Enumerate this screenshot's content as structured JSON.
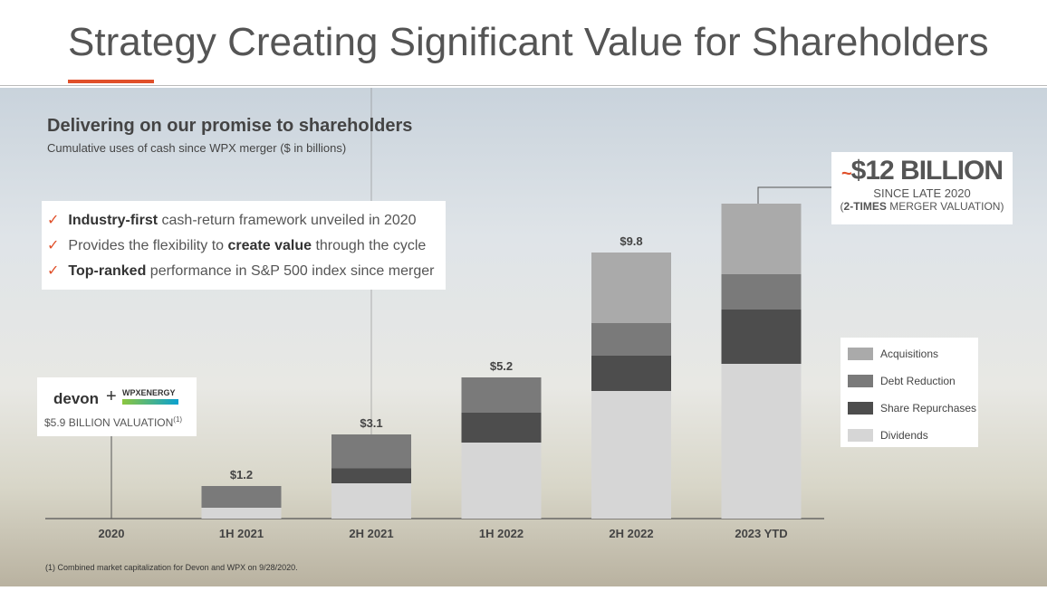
{
  "title": "Strategy Creating Significant Value for Shareholders",
  "chart_data": {
    "type": "stacked_bar",
    "title": "Delivering on our promise to shareholders",
    "subtitle": "Cumulative uses of cash since WPX merger ($ in billions)",
    "categories": [
      "2020",
      "1H 2021",
      "2H 2021",
      "1H 2022",
      "2H 2022",
      "2023 YTD"
    ],
    "series": [
      {
        "name": "Acquisitions",
        "color": "#aaaaaa",
        "values": [
          null,
          null,
          null,
          null,
          2.6,
          2.6
        ]
      },
      {
        "name": "Debt Reduction",
        "color": "#7a7a7a",
        "values": [
          null,
          0.8,
          1.25,
          1.3,
          1.2,
          1.3
        ]
      },
      {
        "name": "Share Repurchases",
        "color": "#4d4d4d",
        "values": [
          null,
          null,
          0.55,
          1.1,
          1.3,
          2.0
        ]
      },
      {
        "name": "Dividends",
        "color": "#d6d6d6",
        "values": [
          null,
          0.4,
          1.3,
          2.8,
          4.7,
          5.7
        ]
      }
    ],
    "totals": [
      null,
      1.2,
      3.1,
      5.2,
      9.8,
      null
    ],
    "value_labels": [
      null,
      "$1.2",
      "$3.1",
      "$5.2",
      "$9.8",
      null
    ],
    "legend": "right",
    "annotations": {
      "headline_prefix": "~",
      "headline": "$12 BILLION",
      "since": "SINCE LATE 2020",
      "note_open": "(",
      "note_bold": "2-TIMES",
      "note_rest": " MERGER VALUATION)"
    }
  },
  "checklist": [
    [
      {
        "text": "Industry-first",
        "bold": true
      },
      {
        "text": " cash-return framework unveiled in 2020",
        "bold": false
      }
    ],
    [
      {
        "text": "Provides the flexibility to ",
        "bold": false
      },
      {
        "text": "create value",
        "bold": true
      },
      {
        "text": " through the cycle",
        "bold": false
      }
    ],
    [
      {
        "text": "Top-ranked",
        "bold": true
      },
      {
        "text": " performance in S&P 500 index since merger",
        "bold": false
      }
    ]
  ],
  "merger_box": {
    "left": "devon",
    "plus": "+",
    "right": "WPXENERGY",
    "valuation": "$5.9 BILLION VALUATION",
    "footnote_ref": "(1)"
  },
  "footnote": "(1) Combined market capitalization for Devon and WPX on 9/28/2020."
}
